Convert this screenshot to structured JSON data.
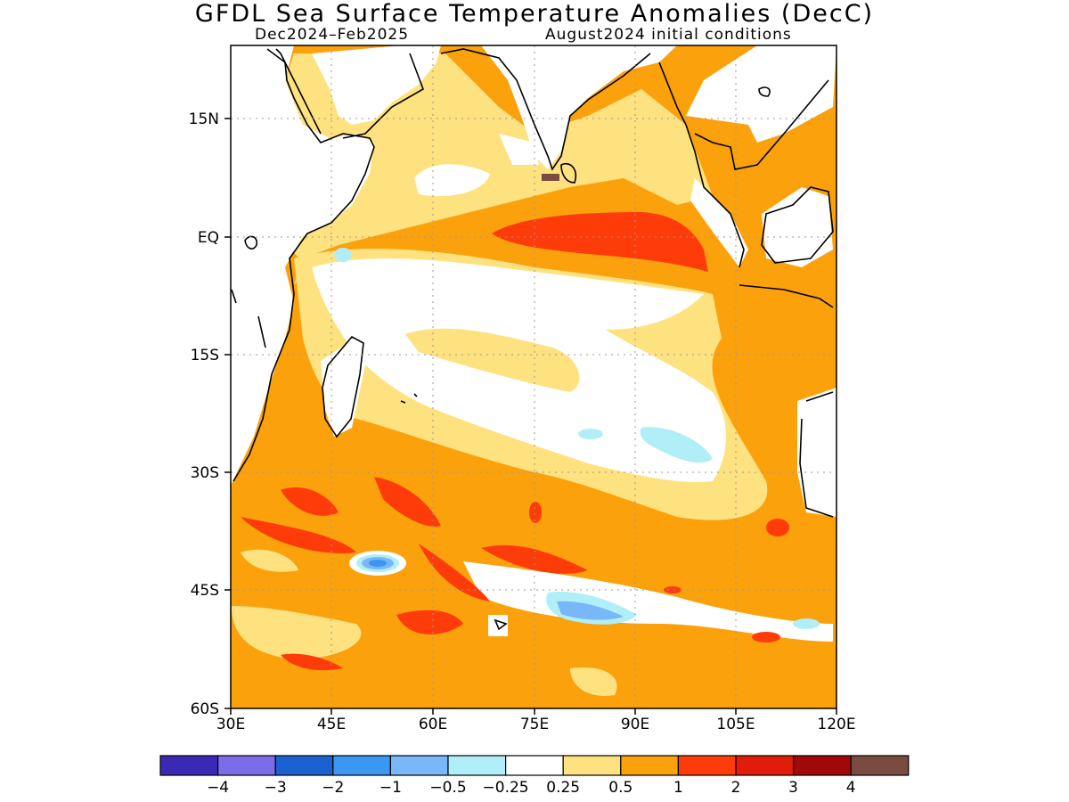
{
  "header": {
    "title": "GFDL Sea Surface Temperature Anomalies (DecC)",
    "period": "Dec2024–Feb2025",
    "init": "August2024 initial conditions"
  },
  "map": {
    "lon_range": [
      30,
      120
    ],
    "lat_range": [
      -60,
      24
    ],
    "x_tick_labels": [
      "30E",
      "45E",
      "60E",
      "75E",
      "90E",
      "105E",
      "120E"
    ],
    "y_tick_labels": [
      "15N",
      "EQ",
      "15S",
      "30S",
      "45S",
      "60S"
    ],
    "grid": "dotted",
    "colors": {
      "land": "#ffffff",
      "coast": "#000000"
    }
  },
  "colorbar": {
    "colors": [
      "#3b28b5",
      "#7c6cea",
      "#1b62d0",
      "#3c96f4",
      "#78b8f8",
      "#b0eef8",
      "#ffffff",
      "#fde27f",
      "#fba10c",
      "#fe3c0a",
      "#e11c0b",
      "#a10808",
      "#7a4c40"
    ],
    "labels": [
      "−4",
      "−3",
      "−2",
      "−1",
      "−0.5",
      "−0.25",
      "0.25",
      "0.5",
      "1",
      "2",
      "3",
      "4"
    ]
  }
}
